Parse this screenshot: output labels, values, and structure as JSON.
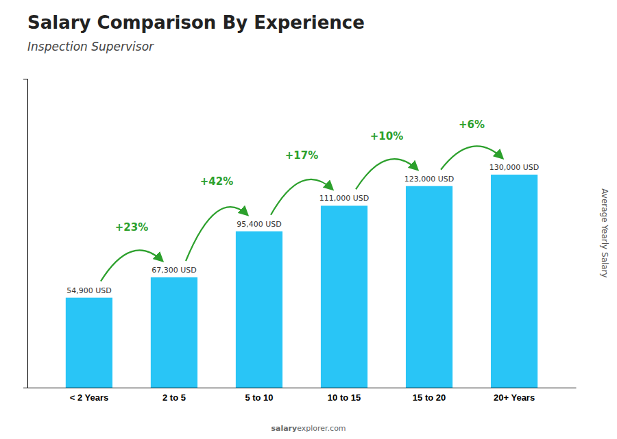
{
  "chart_data": {
    "type": "bar",
    "title": "Salary Comparison By Experience",
    "subtitle": "Inspection Supervisor",
    "ylabel": "Average Yearly Salary",
    "categories": [
      "< 2 Years",
      "2 to 5",
      "5 to 10",
      "10 to 15",
      "15 to 20",
      "20+ Years"
    ],
    "values": [
      54900,
      67300,
      95400,
      111000,
      123000,
      130000
    ],
    "value_labels": [
      "54,900 USD",
      "67,300 USD",
      "95,400 USD",
      "111,000 USD",
      "123,000 USD",
      "130,000 USD"
    ],
    "data_labels": true,
    "color": "#29C5F6",
    "ylim": [
      0,
      188500
    ],
    "tick_labels": "x",
    "annotations": [
      "+23%",
      "+42%",
      "+17%",
      "+10%",
      "+6%"
    ],
    "watermark": [
      "salary",
      "explorer.com"
    ]
  }
}
